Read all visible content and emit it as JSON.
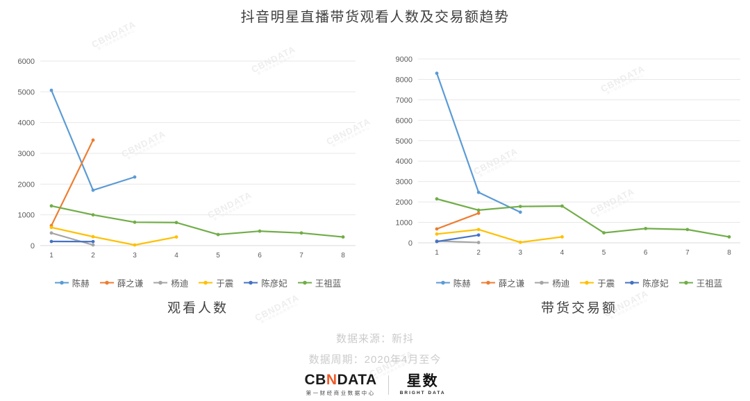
{
  "title": "抖音明星直播带货观看人数及交易额趋势",
  "watermark": {
    "text": "CBNDATA",
    "subtext": "第一财经商业数据中心"
  },
  "chart_data": [
    {
      "type": "line",
      "name": "观看人数",
      "x": [
        1,
        2,
        3,
        4,
        5,
        6,
        7,
        8
      ],
      "ylim": [
        0,
        6000
      ],
      "ytick_step": 1000,
      "grid": true,
      "legend_position": "bottom",
      "series": [
        {
          "name": "陈赫",
          "color": "#5B9BD5",
          "values": [
            5050,
            1800,
            2230,
            null,
            null,
            null,
            null,
            null
          ]
        },
        {
          "name": "薛之谦",
          "color": "#ED7D31",
          "values": [
            650,
            3430,
            null,
            null,
            null,
            null,
            null,
            null
          ]
        },
        {
          "name": "杨迪",
          "color": "#A5A5A5",
          "values": [
            410,
            20,
            null,
            null,
            null,
            null,
            null,
            null
          ]
        },
        {
          "name": "于震",
          "color": "#FFC000",
          "values": [
            590,
            290,
            20,
            280,
            null,
            null,
            null,
            null
          ]
        },
        {
          "name": "陈彦妃",
          "color": "#4472C4",
          "values": [
            135,
            130,
            null,
            null,
            null,
            null,
            null,
            null
          ]
        },
        {
          "name": "王祖蓝",
          "color": "#70AD47",
          "values": [
            1290,
            1000,
            760,
            750,
            360,
            470,
            410,
            280
          ]
        }
      ]
    },
    {
      "type": "line",
      "name": "带货交易额",
      "x": [
        1,
        2,
        3,
        4,
        5,
        6,
        7,
        8
      ],
      "ylim": [
        0,
        9000
      ],
      "ytick_step": 1000,
      "grid": true,
      "legend_position": "bottom",
      "series": [
        {
          "name": "陈赫",
          "color": "#5B9BD5",
          "values": [
            8300,
            2470,
            1500,
            null,
            null,
            null,
            null,
            null
          ]
        },
        {
          "name": "薛之谦",
          "color": "#ED7D31",
          "values": [
            680,
            1450,
            null,
            null,
            null,
            null,
            null,
            null
          ]
        },
        {
          "name": "杨迪",
          "color": "#A5A5A5",
          "values": [
            90,
            15,
            null,
            null,
            null,
            null,
            null,
            null
          ]
        },
        {
          "name": "于震",
          "color": "#FFC000",
          "values": [
            430,
            650,
            25,
            290,
            null,
            null,
            null,
            null
          ]
        },
        {
          "name": "陈彦妃",
          "color": "#4472C4",
          "values": [
            60,
            380,
            null,
            null,
            null,
            null,
            null,
            null
          ]
        },
        {
          "name": "王祖蓝",
          "color": "#70AD47",
          "values": [
            2150,
            1600,
            1780,
            1800,
            490,
            700,
            650,
            290
          ]
        }
      ]
    }
  ],
  "footer": {
    "source": "数据来源：新抖",
    "period": "数据周期：2020年4月至今"
  },
  "logos": {
    "cbndata": {
      "part1": "CB",
      "part2": "N",
      "part3": "DATA",
      "subtitle": "第一财经商业数据中心"
    },
    "bright": {
      "name": "星数",
      "subtitle": "BRIGHT DATA"
    }
  }
}
